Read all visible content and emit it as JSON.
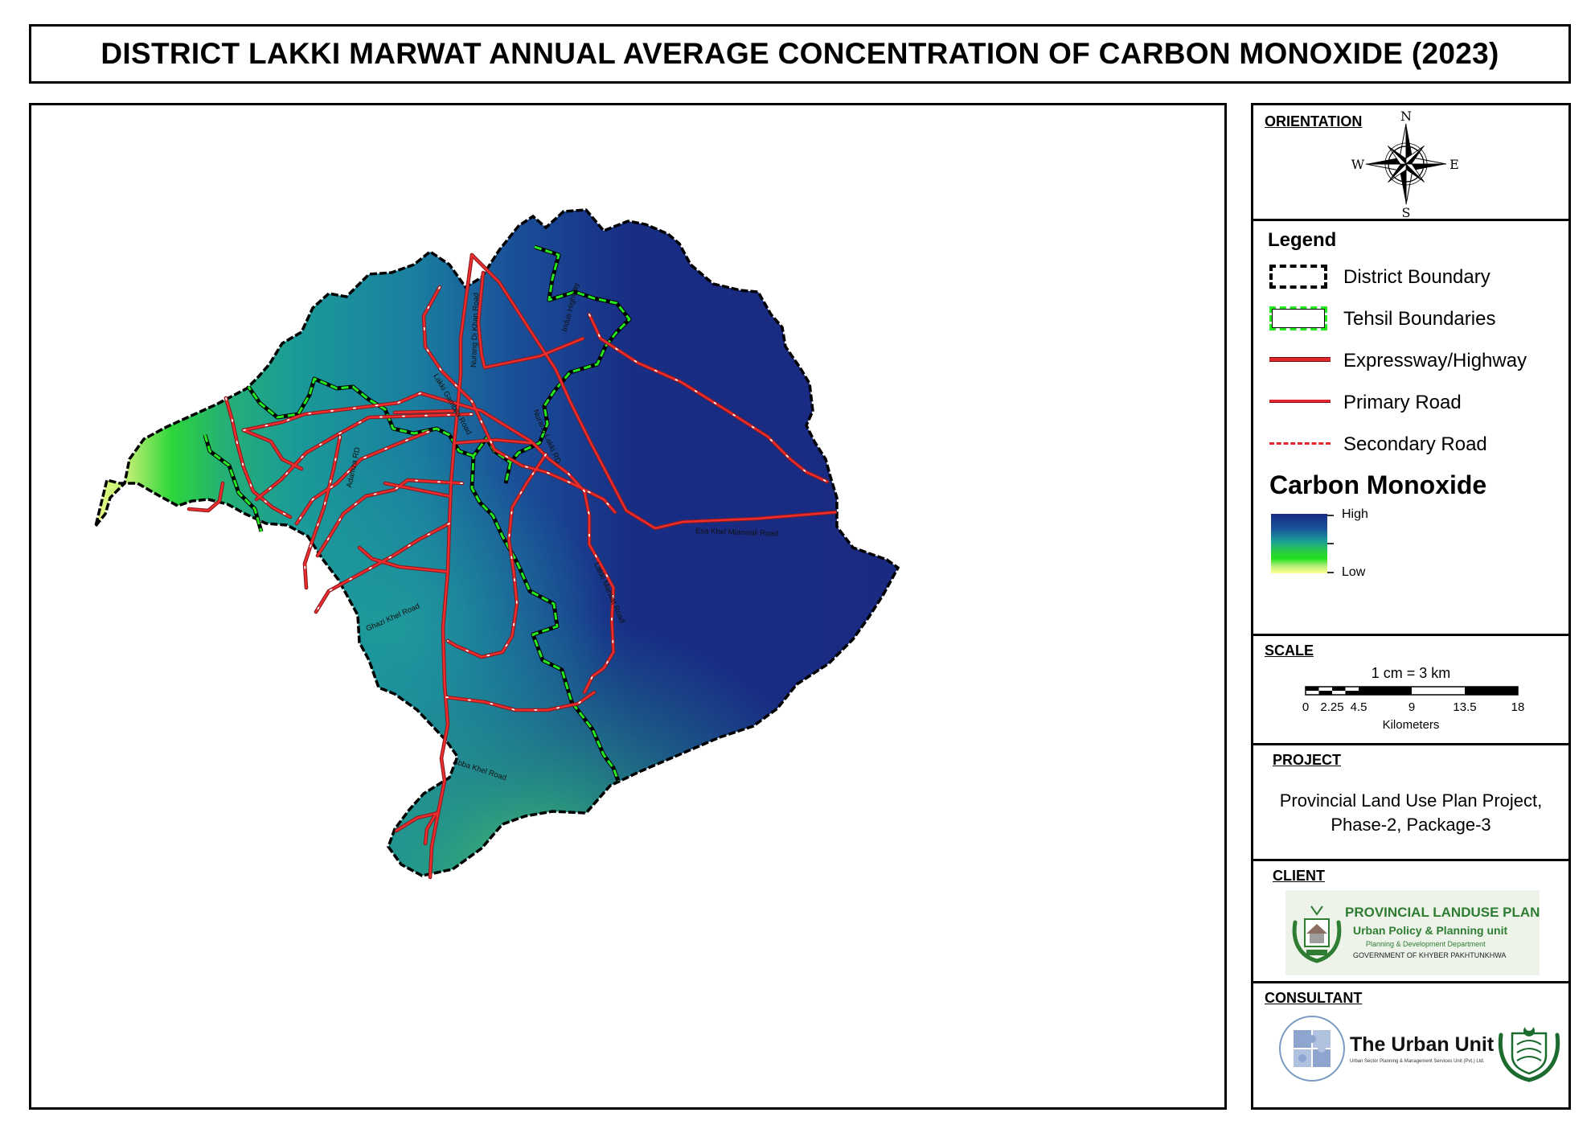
{
  "title": "DISTRICT LAKKI MARWAT ANNUAL AVERAGE  CONCENTRATION OF CARBON MONOXIDE (2023)",
  "orientation": {
    "heading": "ORIENTATION",
    "north": "N",
    "south": "S",
    "east": "E",
    "west": "W"
  },
  "legend": {
    "heading": "Legend",
    "items": [
      {
        "label": "District Boundary",
        "symbol": "district-boundary"
      },
      {
        "label": "Tehsil Boundaries",
        "symbol": "tehsil-boundary"
      },
      {
        "label": "Expressway/Highway",
        "symbol": "expressway"
      },
      {
        "label": "Primary Road",
        "symbol": "primary-road"
      },
      {
        "label": "Secondary Road",
        "symbol": "secondary-road"
      }
    ],
    "ramp_title": "Carbon Monoxide",
    "ramp_high": "High",
    "ramp_low": "Low",
    "ramp_colors": [
      "#1a2a82",
      "#19549a",
      "#1b9c9a",
      "#2bd03f",
      "#ffff91"
    ]
  },
  "scale": {
    "heading": "SCALE",
    "ratio": "1 cm = 3 km",
    "ticks": [
      "0",
      "2.25",
      "4.5",
      "9",
      "13.5",
      "18"
    ],
    "unit": "Kilometers"
  },
  "project": {
    "heading": "PROJECT",
    "line1": "Provincial Land Use Plan Project,",
    "line2": "Phase-2, Package-3"
  },
  "client": {
    "heading": "CLIENT",
    "logo_line1": "PROVINCIAL  LANDUSE PLAN",
    "logo_line2": "Urban Policy & Planning unit",
    "logo_line3": "Planning & Development Department",
    "logo_line4": "GOVERNMENT OF KHYBER PAKHTUNKHWA"
  },
  "consultant": {
    "heading": "CONSULTANT",
    "name": "The Urban Unit",
    "tagline": "Urban Sector Planning & Management Services Unit (Pvt.) Ltd."
  },
  "map": {
    "road_labels": [
      "Nurang Di Khan Road",
      "Indus Highway",
      "Lakki Gambila Road",
      "Nurang Lakki RD",
      "Esa Khel Mianwali Road",
      "Adamza RD",
      "Lakki Marwat Road",
      "Ghazi Khel Road",
      "Abba Khel Road"
    ],
    "colors": {
      "road": "#e3262c",
      "tehsil": "#22e81e",
      "boundary": "#000000"
    }
  }
}
